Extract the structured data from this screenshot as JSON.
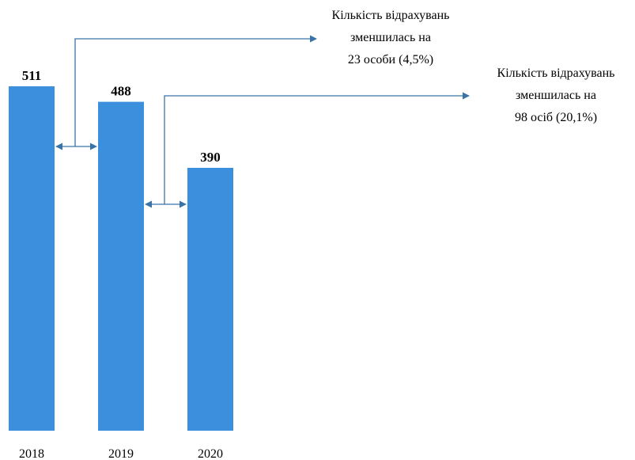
{
  "chart_data": {
    "type": "bar",
    "categories": [
      "2018",
      "2019",
      "2020"
    ],
    "values": [
      511,
      488,
      390
    ],
    "data_labels": [
      "511",
      "488",
      "390"
    ],
    "ylim": [
      0,
      511
    ],
    "grid": false,
    "legend": "none",
    "bar_color": "#3b8fdc",
    "arrow_color": "#3a73a8",
    "annotations": [
      {
        "from": "2018",
        "to": "2019",
        "lines": [
          "Кількість відрахувань",
          "зменшилась на",
          "23 особи (4,5%)"
        ]
      },
      {
        "from": "2019",
        "to": "2020",
        "lines": [
          "Кількість відрахувань",
          "зменшилась на",
          "98 осіб (20,1%)"
        ]
      }
    ]
  }
}
